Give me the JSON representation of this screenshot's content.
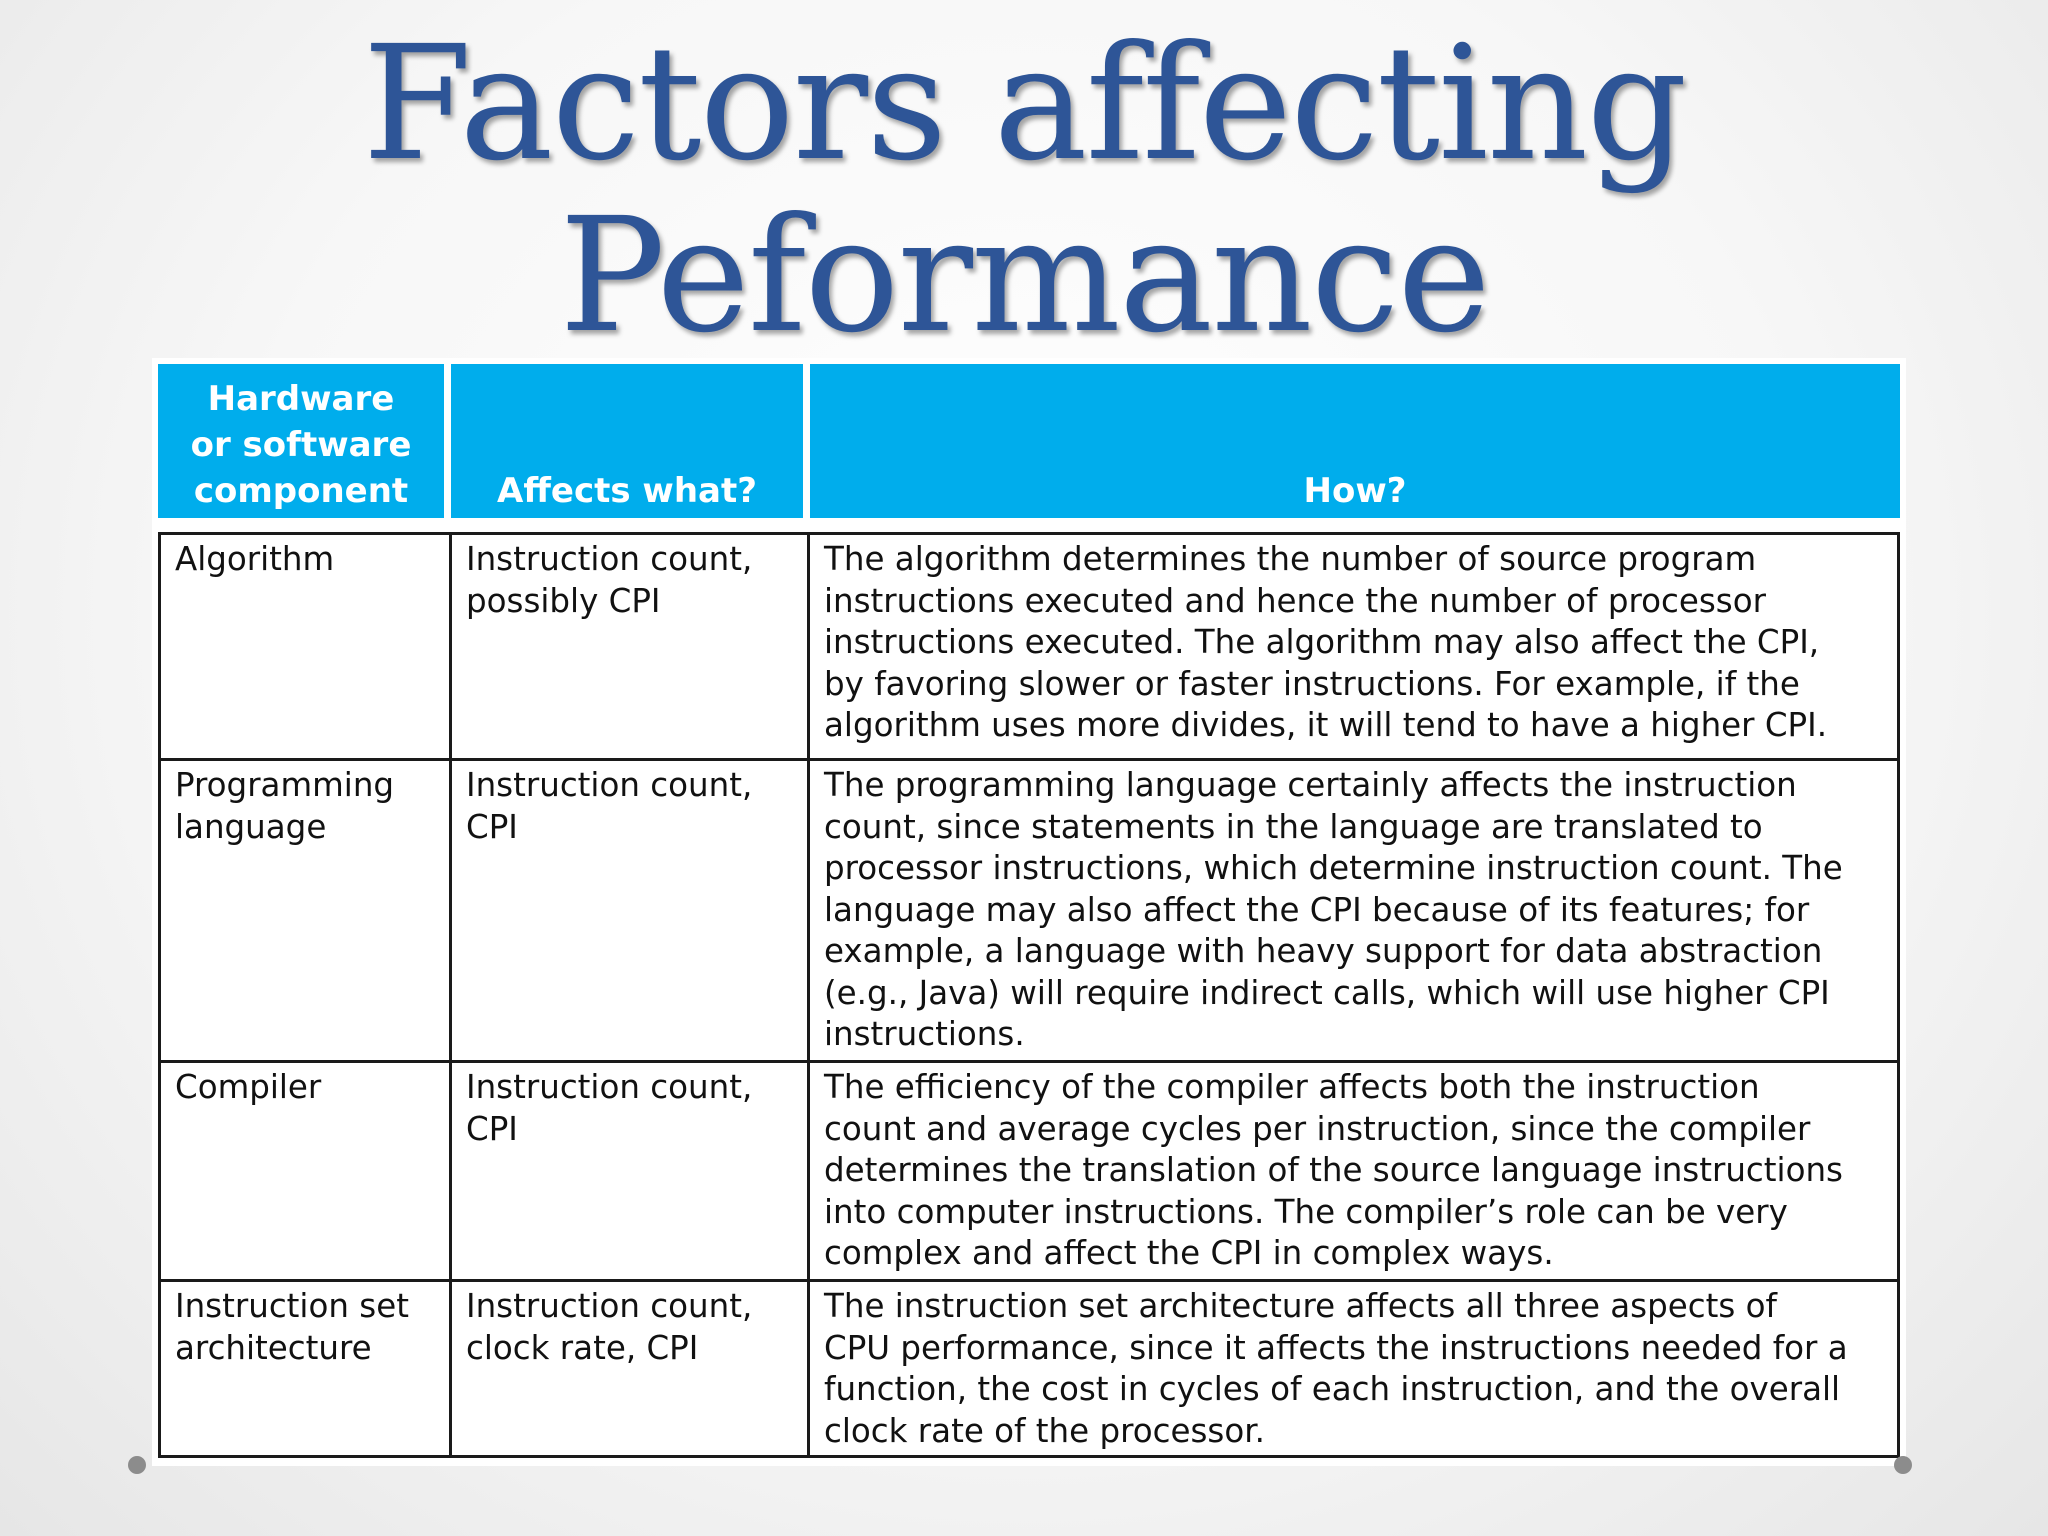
{
  "slide": {
    "title_line1": "Factors affecting",
    "title_line2": "Peformance"
  },
  "table": {
    "headers": [
      "Hardware or software component",
      "Affects what?",
      "How?"
    ],
    "header_lines": {
      "col1": [
        "Hardware",
        "or software",
        "component"
      ],
      "col2": "Affects what?",
      "col3": "How?"
    },
    "rows": [
      {
        "component": [
          "Algorithm"
        ],
        "affects": [
          "Instruction count,",
          "possibly CPI"
        ],
        "how": [
          "The algorithm determines the number of source program",
          "instructions executed and hence the number of processor",
          "instructions executed. The algorithm may also affect the CPI,",
          "by favoring slower or faster instructions. For example, if the",
          "algorithm uses more divides, it will tend to have a higher CPI."
        ]
      },
      {
        "component": [
          "Programming",
          "language"
        ],
        "affects": [
          "Instruction count,",
          "CPI"
        ],
        "how": [
          "The programming language certainly affects the instruction",
          "count, since statements in the language are translated to",
          "processor instructions, which determine instruction count. The",
          "language may also affect the CPI because of its features; for",
          "example, a language with heavy support for data abstraction",
          "(e.g., Java) will require indirect calls, which will use higher CPI",
          "instructions."
        ]
      },
      {
        "component": [
          "Compiler"
        ],
        "affects": [
          "Instruction count,",
          "CPI"
        ],
        "how": [
          "The efficiency of the compiler affects both the instruction",
          "count and average cycles per instruction, since the compiler",
          "determines the translation of the source language instructions",
          "into computer instructions. The compiler’s role can be very",
          "complex and affect the CPI in complex ways."
        ]
      },
      {
        "component": [
          "Instruction set",
          "architecture"
        ],
        "affects": [
          "Instruction count,",
          "clock rate, CPI"
        ],
        "how": [
          "The instruction set architecture affects all three aspects of",
          "CPU performance, since it affects the instructions needed for a",
          "function, the cost in cycles of each instruction, and the overall",
          "clock rate of the processor."
        ]
      }
    ]
  },
  "colors": {
    "title": "#2e5597",
    "header_bg": "#00adec",
    "header_text": "#ffffff"
  }
}
